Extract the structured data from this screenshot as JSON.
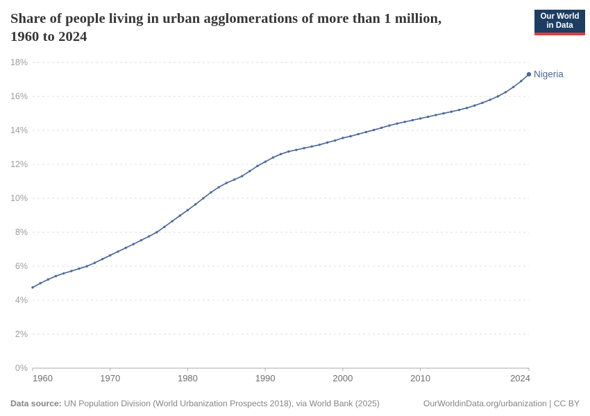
{
  "header": {
    "title_line1": "Share of people living in urban agglomerations of more than 1 million,",
    "title_line2": "1960 to 2024",
    "logo_line1": "Our World",
    "logo_line2": "in Data"
  },
  "chart_data": {
    "type": "line",
    "title": "Share of people living in urban agglomerations of more than 1 million, 1960 to 2024",
    "xlabel": "",
    "ylabel": "",
    "xlim": [
      1960,
      2024
    ],
    "ylim": [
      0,
      18
    ],
    "grid": "horizontal-dashed",
    "legend_position": "end-of-line-label",
    "colors": {
      "line": "#4c6a9c",
      "gridline": "#dedede",
      "axis": "#a9a9a9",
      "y_tick_text": "#9e9e9e",
      "x_tick_text": "#6e6e6e"
    },
    "y_tick_values": [
      0,
      2,
      4,
      6,
      8,
      10,
      12,
      14,
      16,
      18
    ],
    "y_tick_labels": [
      "0%",
      "2%",
      "4%",
      "6%",
      "8%",
      "10%",
      "12%",
      "14%",
      "16%",
      "18%"
    ],
    "x_tick_values": [
      1960,
      1970,
      1980,
      1990,
      2000,
      2010,
      2024
    ],
    "series": [
      {
        "name": "Nigeria",
        "color": "#4c6a9c",
        "x": [
          1960,
          1961,
          1962,
          1963,
          1964,
          1965,
          1966,
          1967,
          1968,
          1969,
          1970,
          1971,
          1972,
          1973,
          1974,
          1975,
          1976,
          1977,
          1978,
          1979,
          1980,
          1981,
          1982,
          1983,
          1984,
          1985,
          1986,
          1987,
          1988,
          1989,
          1990,
          1991,
          1992,
          1993,
          1994,
          1995,
          1996,
          1997,
          1998,
          1999,
          2000,
          2001,
          2002,
          2003,
          2004,
          2005,
          2006,
          2007,
          2008,
          2009,
          2010,
          2011,
          2012,
          2013,
          2014,
          2015,
          2016,
          2017,
          2018,
          2019,
          2020,
          2021,
          2022,
          2023,
          2024
        ],
        "values": [
          4.75,
          5.0,
          5.22,
          5.42,
          5.58,
          5.72,
          5.86,
          6.0,
          6.2,
          6.42,
          6.64,
          6.86,
          7.08,
          7.3,
          7.53,
          7.76,
          8.0,
          8.32,
          8.65,
          8.98,
          9.3,
          9.64,
          10.0,
          10.35,
          10.65,
          10.9,
          11.1,
          11.3,
          11.6,
          11.9,
          12.15,
          12.4,
          12.6,
          12.75,
          12.85,
          12.95,
          13.05,
          13.15,
          13.28,
          13.4,
          13.55,
          13.65,
          13.78,
          13.9,
          14.02,
          14.15,
          14.28,
          14.4,
          14.5,
          14.6,
          14.7,
          14.8,
          14.9,
          15.0,
          15.1,
          15.2,
          15.32,
          15.46,
          15.62,
          15.8,
          16.0,
          16.25,
          16.55,
          16.9,
          17.3
        ]
      }
    ]
  },
  "footer": {
    "datasource_label": "Data source:",
    "datasource_text": " UN Population Division (World Urbanization Prospects 2018), via World Bank (2025)",
    "credit": "OurWorldinData.org/urbanization | CC BY"
  }
}
